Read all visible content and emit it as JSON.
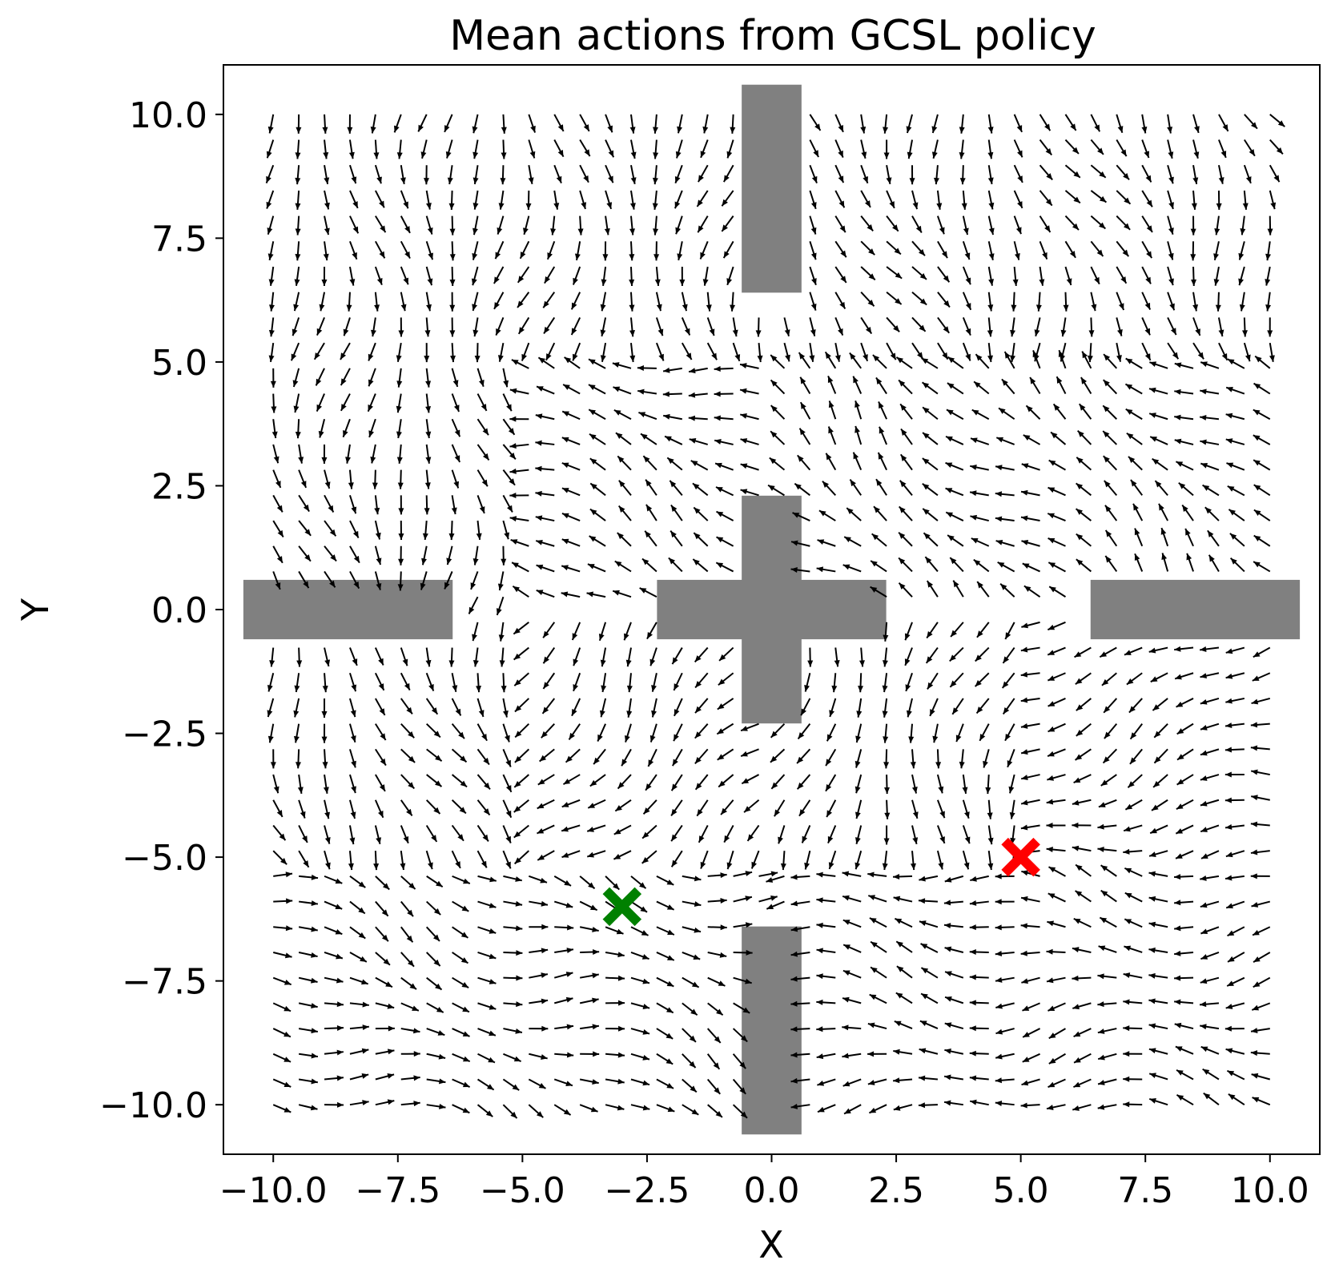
{
  "chart_data": {
    "type": "quiver",
    "title": "Mean actions from GCSL policy",
    "xlabel": "X",
    "ylabel": "Y",
    "xlim": [
      -11.0,
      11.0
    ],
    "ylim": [
      -11.0,
      11.0
    ],
    "xticks": [
      -10.0,
      -7.5,
      -5.0,
      -2.5,
      0.0,
      2.5,
      5.0,
      7.5,
      10.0
    ],
    "yticks": [
      -10.0,
      -7.5,
      -5.0,
      -2.5,
      0.0,
      2.5,
      5.0,
      7.5,
      10.0
    ],
    "xtick_labels": [
      "−10.0",
      "−7.5",
      "−5.0",
      "−2.5",
      "0.0",
      "2.5",
      "5.0",
      "7.5",
      "10.0"
    ],
    "ytick_labels": [
      "−10.0",
      "−7.5",
      "−5.0",
      "−2.5",
      "0.0",
      "2.5",
      "5.0",
      "7.5",
      "10.0"
    ],
    "grid": false,
    "legend": null,
    "vector_grid": {
      "x_range": [
        -10.0,
        10.0
      ],
      "y_range": [
        -10.0,
        10.0
      ],
      "count_per_axis": 40,
      "arrow_color": "#000000",
      "regions": [
        {
          "x": [
            -10,
            0
          ],
          "y": [
            5,
            10
          ],
          "dx": -0.05,
          "dy": -1.0
        },
        {
          "x": [
            0,
            10
          ],
          "y": [
            5,
            10
          ],
          "dx": 0.3,
          "dy": -0.9
        },
        {
          "x": [
            -10,
            -5
          ],
          "y": [
            0,
            5
          ],
          "dx": 0.1,
          "dy": -1.0
        },
        {
          "x": [
            -5,
            0
          ],
          "y": [
            0,
            5
          ],
          "dx": -0.7,
          "dy": 0.3
        },
        {
          "x": [
            0,
            10
          ],
          "y": [
            0,
            5
          ],
          "dx": -0.6,
          "dy": 0.5
        },
        {
          "x": [
            -10,
            -5
          ],
          "y": [
            -5,
            0
          ],
          "dx": 0.3,
          "dy": -0.9
        },
        {
          "x": [
            -5,
            0
          ],
          "y": [
            -5,
            0
          ],
          "dx": -0.5,
          "dy": -0.6
        },
        {
          "x": [
            0,
            5
          ],
          "y": [
            -5,
            0
          ],
          "dx": -0.2,
          "dy": -0.9
        },
        {
          "x": [
            5,
            10
          ],
          "y": [
            -5,
            0
          ],
          "dx": -0.9,
          "dy": -0.3
        },
        {
          "x": [
            -10,
            0
          ],
          "y": [
            -10,
            -5
          ],
          "dx": 0.9,
          "dy": -0.3
        },
        {
          "x": [
            0,
            10
          ],
          "y": [
            -10,
            -5
          ],
          "dx": -0.95,
          "dy": 0.05
        }
      ]
    },
    "obstacles": [
      {
        "x": [
          -0.6,
          0.6
        ],
        "y": [
          6.4,
          10.6
        ]
      },
      {
        "x": [
          -0.6,
          0.6
        ],
        "y": [
          -2.3,
          2.3
        ]
      },
      {
        "x": [
          -2.3,
          2.3
        ],
        "y": [
          -0.6,
          0.6
        ]
      },
      {
        "x": [
          -10.6,
          -6.4
        ],
        "y": [
          -0.6,
          0.6
        ]
      },
      {
        "x": [
          6.4,
          10.6
        ],
        "y": [
          -0.6,
          0.6
        ]
      },
      {
        "x": [
          -0.6,
          0.6
        ],
        "y": [
          -10.6,
          -6.4
        ]
      }
    ],
    "obstacle_color": "#808080",
    "markers": [
      {
        "x": -3.0,
        "y": -6.0,
        "color": "#008000",
        "symbol": "x"
      },
      {
        "x": 5.0,
        "y": -5.0,
        "color": "#ff0000",
        "symbol": "x"
      }
    ]
  }
}
